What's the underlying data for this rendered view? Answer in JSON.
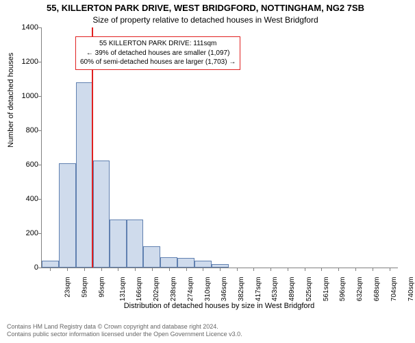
{
  "title_line1": "55, KILLERTON PARK DRIVE, WEST BRIDGFORD, NOTTINGHAM, NG2 7SB",
  "title_line2": "Size of property relative to detached houses in West Bridgford",
  "y_axis_label": "Number of detached houses",
  "x_axis_label": "Distribution of detached houses by size in West Bridgford",
  "chart": {
    "type": "histogram",
    "x_unit": "sqm",
    "x_min": 5,
    "x_max": 758,
    "bin_width": 36,
    "x_ticks": [
      23,
      59,
      95,
      131,
      166,
      202,
      238,
      274,
      310,
      346,
      382,
      417,
      453,
      489,
      525,
      561,
      596,
      632,
      668,
      704,
      740
    ],
    "y_min": 0,
    "y_max": 1400,
    "y_ticks": [
      0,
      200,
      400,
      600,
      800,
      1000,
      1200,
      1400
    ],
    "bins": [
      {
        "start": 5,
        "count": 40
      },
      {
        "start": 41,
        "count": 610
      },
      {
        "start": 77,
        "count": 1080
      },
      {
        "start": 113,
        "count": 625
      },
      {
        "start": 149,
        "count": 280
      },
      {
        "start": 184,
        "count": 280
      },
      {
        "start": 220,
        "count": 125
      },
      {
        "start": 256,
        "count": 60
      },
      {
        "start": 292,
        "count": 55
      },
      {
        "start": 328,
        "count": 40
      },
      {
        "start": 364,
        "count": 20
      }
    ],
    "marker_value": 111,
    "marker_color": "#e02020",
    "bar_fill": "#cfdbec",
    "bar_border": "#6080b0",
    "axis_color": "#808080",
    "background_color": "#ffffff",
    "title_fontsize": 13,
    "subtitle_fontsize": 12,
    "axis_label_fontsize": 11,
    "tick_fontsize": 10
  },
  "annotation": {
    "line1": "55 KILLERTON PARK DRIVE: 111sqm",
    "line2": "← 39% of detached houses are smaller (1,097)",
    "line3": "60% of semi-detached houses are larger (1,703) →",
    "border_color": "#e02020",
    "background_color": "#ffffff",
    "fontsize": 10
  },
  "footer": {
    "line1": "Contains HM Land Registry data © Crown copyright and database right 2024.",
    "line2": "Contains public sector information licensed under the Open Government Licence v3.0.",
    "color": "#666666",
    "fontsize": 9
  }
}
